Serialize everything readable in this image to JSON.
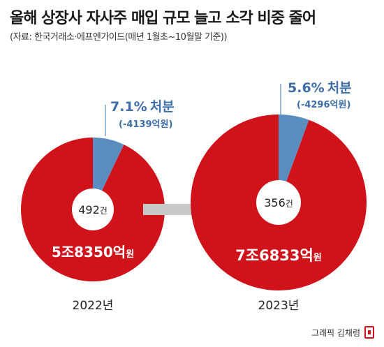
{
  "title": "올해 상장사 자사주 매입 규모 늘고 소각 비중 줄어",
  "source": "(자료: 한국거래소·에프엔가이드(매년 1월초~10월말 기준))",
  "credit": "그래픽 김채령",
  "colors": {
    "purchase": "#d0121b",
    "cancel": "#5b8cc0",
    "arrow": "#c8c8c8",
    "label_blue": "#3d6ea8"
  },
  "chart_data": {
    "type": "pie",
    "charts": [
      {
        "year": "2022년",
        "count_value": "492",
        "count_unit": "건",
        "total_value": "5조8350억",
        "total_unit": "원",
        "cancel_pct": 7.1,
        "cancel_pct_label": "7.1%",
        "cancel_label": "처분",
        "cancel_amount": "(-4139억원)"
      },
      {
        "year": "2023년",
        "count_value": "356",
        "count_unit": "건",
        "total_value": "7조6833억",
        "total_unit": "원",
        "cancel_pct": 5.6,
        "cancel_pct_label": "5.6%",
        "cancel_label": "처분",
        "cancel_amount": "(-4296억원)"
      }
    ]
  }
}
